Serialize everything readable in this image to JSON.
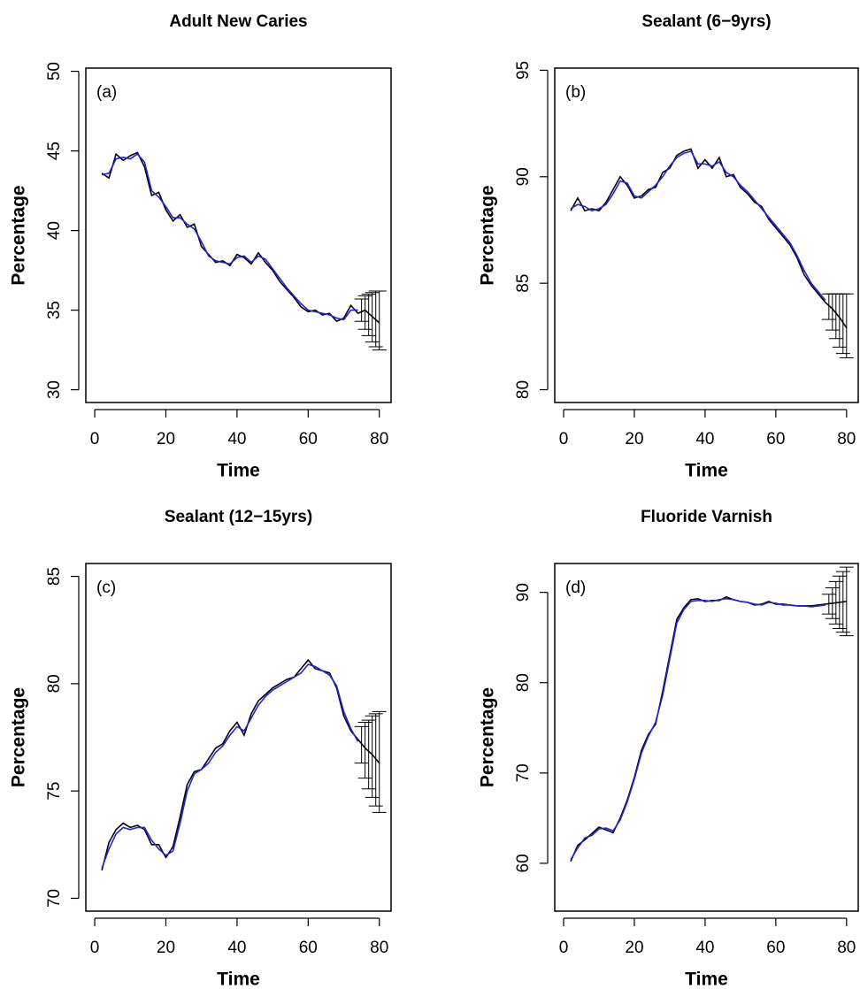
{
  "chart_data": [
    {
      "type": "line",
      "title": "Adult New Caries",
      "panel_label": "(a)",
      "x_label": "Time",
      "y_label": "Percentage",
      "x": [
        2,
        4,
        6,
        8,
        10,
        12,
        14,
        16,
        18,
        20,
        22,
        24,
        26,
        28,
        30,
        32,
        34,
        36,
        38,
        40,
        42,
        44,
        46,
        48,
        50,
        52,
        54,
        56,
        58,
        60,
        62,
        64,
        66,
        68,
        70,
        72,
        74,
        76,
        78,
        80
      ],
      "series": [
        {
          "color": "#000000",
          "values": [
            43.6,
            43.3,
            44.8,
            44.4,
            44.7,
            44.9,
            44.0,
            42.2,
            42.4,
            41.3,
            40.6,
            41.0,
            40.2,
            40.4,
            39.0,
            38.5,
            38.0,
            38.1,
            37.8,
            38.5,
            38.3,
            37.9,
            38.6,
            38.0,
            37.5,
            36.8,
            36.3,
            35.8,
            35.2,
            34.9,
            35.0,
            34.7,
            34.8,
            34.3,
            34.5,
            35.3,
            34.8,
            35.0,
            34.6,
            34.2
          ]
        },
        {
          "color": "#2222dd",
          "values": [
            43.5,
            43.6,
            44.5,
            44.6,
            44.5,
            44.8,
            44.3,
            42.5,
            42.1,
            41.5,
            40.8,
            40.8,
            40.4,
            40.1,
            39.3,
            38.4,
            38.1,
            38.0,
            37.9,
            38.3,
            38.4,
            38.0,
            38.4,
            38.2,
            37.6,
            37.0,
            36.4,
            35.9,
            35.4,
            35.0,
            34.9,
            34.8,
            34.7,
            34.5,
            34.4,
            35.0,
            35.0,
            null,
            null,
            null
          ]
        }
      ],
      "error_bars": {
        "x": [
          75,
          76,
          77,
          78,
          79,
          80
        ],
        "lower": [
          34.3,
          33.8,
          33.4,
          33.0,
          32.7,
          32.5
        ],
        "upper": [
          35.7,
          35.9,
          36.0,
          36.1,
          36.2,
          36.2
        ]
      },
      "xlim": [
        -2.5,
        83.3
      ],
      "ylim": [
        29.2,
        50.2
      ],
      "xticks": [
        0,
        20,
        40,
        60,
        80
      ],
      "yticks": [
        30,
        35,
        40,
        45,
        50
      ]
    },
    {
      "type": "line",
      "title": "Sealant (6−9yrs)",
      "panel_label": "(b)",
      "x_label": "Time",
      "y_label": "Percentage",
      "x": [
        2,
        4,
        6,
        8,
        10,
        12,
        14,
        16,
        18,
        20,
        22,
        24,
        26,
        28,
        30,
        32,
        34,
        36,
        38,
        40,
        42,
        44,
        46,
        48,
        50,
        52,
        54,
        56,
        58,
        60,
        62,
        64,
        66,
        68,
        70,
        72,
        74,
        76,
        78,
        80
      ],
      "series": [
        {
          "color": "#000000",
          "values": [
            88.4,
            89.0,
            88.4,
            88.5,
            88.4,
            88.8,
            89.4,
            90.0,
            89.6,
            89.0,
            89.1,
            89.4,
            89.5,
            90.2,
            90.4,
            91.0,
            91.2,
            91.3,
            90.4,
            90.8,
            90.4,
            90.9,
            90.0,
            90.1,
            89.5,
            89.2,
            88.8,
            88.6,
            88.0,
            87.6,
            87.2,
            86.8,
            86.2,
            85.4,
            84.9,
            84.5,
            84.1,
            83.8,
            83.4,
            82.9
          ]
        },
        {
          "color": "#2222dd",
          "values": [
            88.5,
            88.7,
            88.6,
            88.4,
            88.5,
            88.7,
            89.2,
            89.8,
            89.7,
            89.1,
            89.0,
            89.3,
            89.6,
            90.0,
            90.5,
            90.9,
            91.1,
            91.2,
            90.6,
            90.6,
            90.5,
            90.7,
            90.2,
            90.0,
            89.6,
            89.3,
            88.9,
            88.5,
            88.1,
            87.7,
            87.3,
            86.9,
            86.3,
            85.6,
            85.0,
            84.6,
            84.2,
            null,
            null,
            null
          ]
        }
      ],
      "error_bars": {
        "x": [
          75,
          76,
          77,
          78,
          79,
          80
        ],
        "lower": [
          83.3,
          82.8,
          82.4,
          82.0,
          81.7,
          81.5
        ],
        "upper": [
          84.5,
          84.5,
          84.5,
          84.5,
          84.5,
          84.5
        ]
      },
      "xlim": [
        -2.5,
        83.3
      ],
      "ylim": [
        79.4,
        95.1
      ],
      "xticks": [
        0,
        20,
        40,
        60,
        80
      ],
      "yticks": [
        80,
        85,
        90,
        95
      ]
    },
    {
      "type": "line",
      "title": "Sealant (12−15yrs)",
      "panel_label": "(c)",
      "x_label": "Time",
      "y_label": "Percentage",
      "x": [
        2,
        4,
        6,
        8,
        10,
        12,
        14,
        16,
        18,
        20,
        22,
        24,
        26,
        28,
        30,
        32,
        34,
        36,
        38,
        40,
        42,
        44,
        46,
        48,
        50,
        52,
        54,
        56,
        58,
        60,
        62,
        64,
        66,
        68,
        70,
        72,
        74,
        76,
        78,
        80
      ],
      "series": [
        {
          "color": "#000000",
          "values": [
            71.3,
            72.6,
            73.2,
            73.5,
            73.3,
            73.4,
            73.2,
            72.5,
            72.5,
            71.9,
            72.4,
            73.8,
            75.3,
            75.9,
            76.0,
            76.5,
            77.0,
            77.2,
            77.8,
            78.2,
            77.6,
            78.6,
            79.2,
            79.5,
            79.8,
            80.0,
            80.2,
            80.3,
            80.7,
            81.1,
            80.7,
            80.6,
            80.5,
            79.8,
            78.5,
            77.8,
            77.4,
            77.0,
            76.7,
            76.3
          ]
        },
        {
          "color": "#2222dd",
          "values": [
            71.4,
            72.3,
            73.0,
            73.3,
            73.2,
            73.3,
            73.3,
            72.7,
            72.3,
            72.0,
            72.2,
            73.5,
            75.0,
            75.8,
            76.0,
            76.3,
            76.8,
            77.1,
            77.6,
            78.0,
            77.8,
            78.4,
            79.0,
            79.4,
            79.7,
            79.9,
            80.1,
            80.3,
            80.5,
            80.9,
            80.8,
            80.6,
            80.4,
            79.9,
            78.7,
            77.9,
            77.3,
            null,
            null,
            null
          ]
        }
      ],
      "error_bars": {
        "x": [
          75,
          76,
          77,
          78,
          79,
          80
        ],
        "lower": [
          76.3,
          75.6,
          75.1,
          74.7,
          74.3,
          74.0
        ],
        "upper": [
          78.0,
          78.2,
          78.3,
          78.5,
          78.6,
          78.7
        ]
      },
      "xlim": [
        -2.5,
        83.3
      ],
      "ylim": [
        69.4,
        85.6
      ],
      "xticks": [
        0,
        20,
        40,
        60,
        80
      ],
      "yticks": [
        70,
        75,
        80,
        85
      ]
    },
    {
      "type": "line",
      "title": "Fluoride Varnish",
      "panel_label": "(d)",
      "x_label": "Time",
      "y_label": "Percentage",
      "x": [
        2,
        4,
        6,
        8,
        10,
        12,
        14,
        16,
        18,
        20,
        22,
        24,
        26,
        28,
        30,
        32,
        34,
        36,
        38,
        40,
        42,
        44,
        46,
        48,
        50,
        52,
        54,
        56,
        58,
        60,
        62,
        64,
        66,
        68,
        70,
        72,
        74,
        76,
        78,
        80
      ],
      "series": [
        {
          "color": "#000000",
          "values": [
            60.2,
            62.0,
            62.6,
            63.3,
            64.0,
            63.7,
            63.4,
            65.0,
            67.0,
            69.5,
            72.5,
            74.3,
            75.4,
            79.0,
            83.0,
            87.0,
            88.3,
            89.2,
            89.3,
            89.0,
            89.1,
            89.1,
            89.5,
            89.2,
            89.0,
            88.9,
            88.6,
            88.7,
            89.0,
            88.7,
            88.7,
            88.6,
            88.5,
            88.5,
            88.5,
            88.6,
            88.7,
            88.8,
            88.9,
            89.0
          ]
        },
        {
          "color": "#2222dd",
          "values": [
            60.4,
            61.7,
            62.8,
            63.1,
            63.8,
            63.9,
            63.6,
            64.8,
            66.8,
            69.3,
            72.2,
            74.1,
            75.6,
            78.6,
            82.6,
            86.6,
            88.1,
            89.0,
            89.1,
            89.1,
            89.0,
            89.2,
            89.3,
            89.2,
            89.0,
            88.9,
            88.7,
            88.6,
            88.9,
            88.8,
            88.6,
            88.6,
            88.5,
            88.5,
            88.4,
            88.5,
            88.6,
            null,
            null,
            null
          ]
        }
      ],
      "error_bars": {
        "x": [
          75,
          76,
          77,
          78,
          79,
          80
        ],
        "lower": [
          87.6,
          87.1,
          86.5,
          86.0,
          85.6,
          85.2
        ],
        "upper": [
          89.8,
          90.5,
          91.2,
          91.8,
          92.3,
          92.8
        ]
      },
      "xlim": [
        -2.5,
        83.3
      ],
      "ylim": [
        54.7,
        93.2
      ],
      "xticks": [
        0,
        20,
        40,
        60,
        80
      ],
      "yticks": [
        60,
        70,
        80,
        90
      ]
    }
  ]
}
